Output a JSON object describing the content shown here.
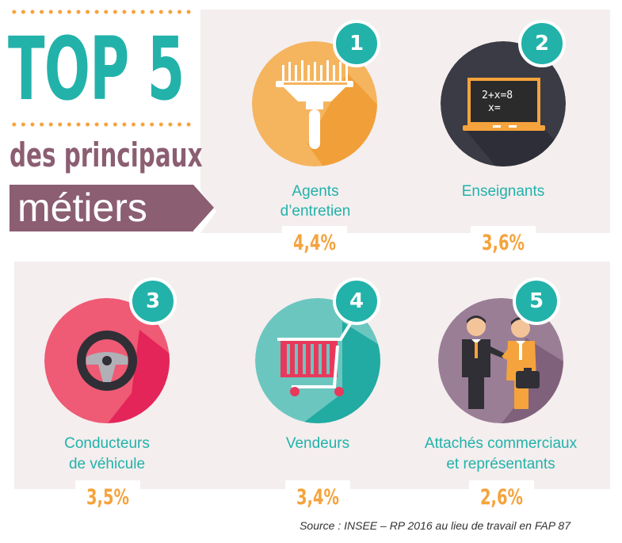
{
  "header": {
    "title": "TOP 5",
    "subtitle_line1": "des principaux",
    "subtitle_line2": "métiers"
  },
  "jobs": [
    {
      "rank": "1",
      "label_line1": "Agents",
      "label_line2": "d’entretien",
      "percent": "4,4%",
      "icon": "window-squeegee-icon",
      "color": "#f5a33c"
    },
    {
      "rank": "2",
      "label_line1": "Enseignants",
      "label_line2": "",
      "percent": "3,6%",
      "icon": "blackboard-laptop-icon",
      "color": "#3a3b45"
    },
    {
      "rank": "3",
      "label_line1": "Conducteurs",
      "label_line2": "de véhicule",
      "percent": "3,5%",
      "icon": "steering-wheel-icon",
      "color": "#e8395c"
    },
    {
      "rank": "4",
      "label_line1": "Vendeurs",
      "label_line2": "",
      "percent": "3,4%",
      "icon": "shopping-cart-icon",
      "color": "#22b2aa"
    },
    {
      "rank": "5",
      "label_line1": "Attachés commerciaux",
      "label_line2": "et représentants",
      "percent": "2,6%",
      "icon": "handshake-businessmen-icon",
      "color": "#8b6a85"
    }
  ],
  "chalkboard_text_line1": "2+x=8",
  "chalkboard_text_line2": "x=",
  "source": "Source : INSEE – RP 2016 au lieu de travail en FAP 87",
  "colors": {
    "teal": "#22b2aa",
    "orange": "#f5a33c",
    "plum": "#8b5e72",
    "panel": "#f4eeee"
  }
}
